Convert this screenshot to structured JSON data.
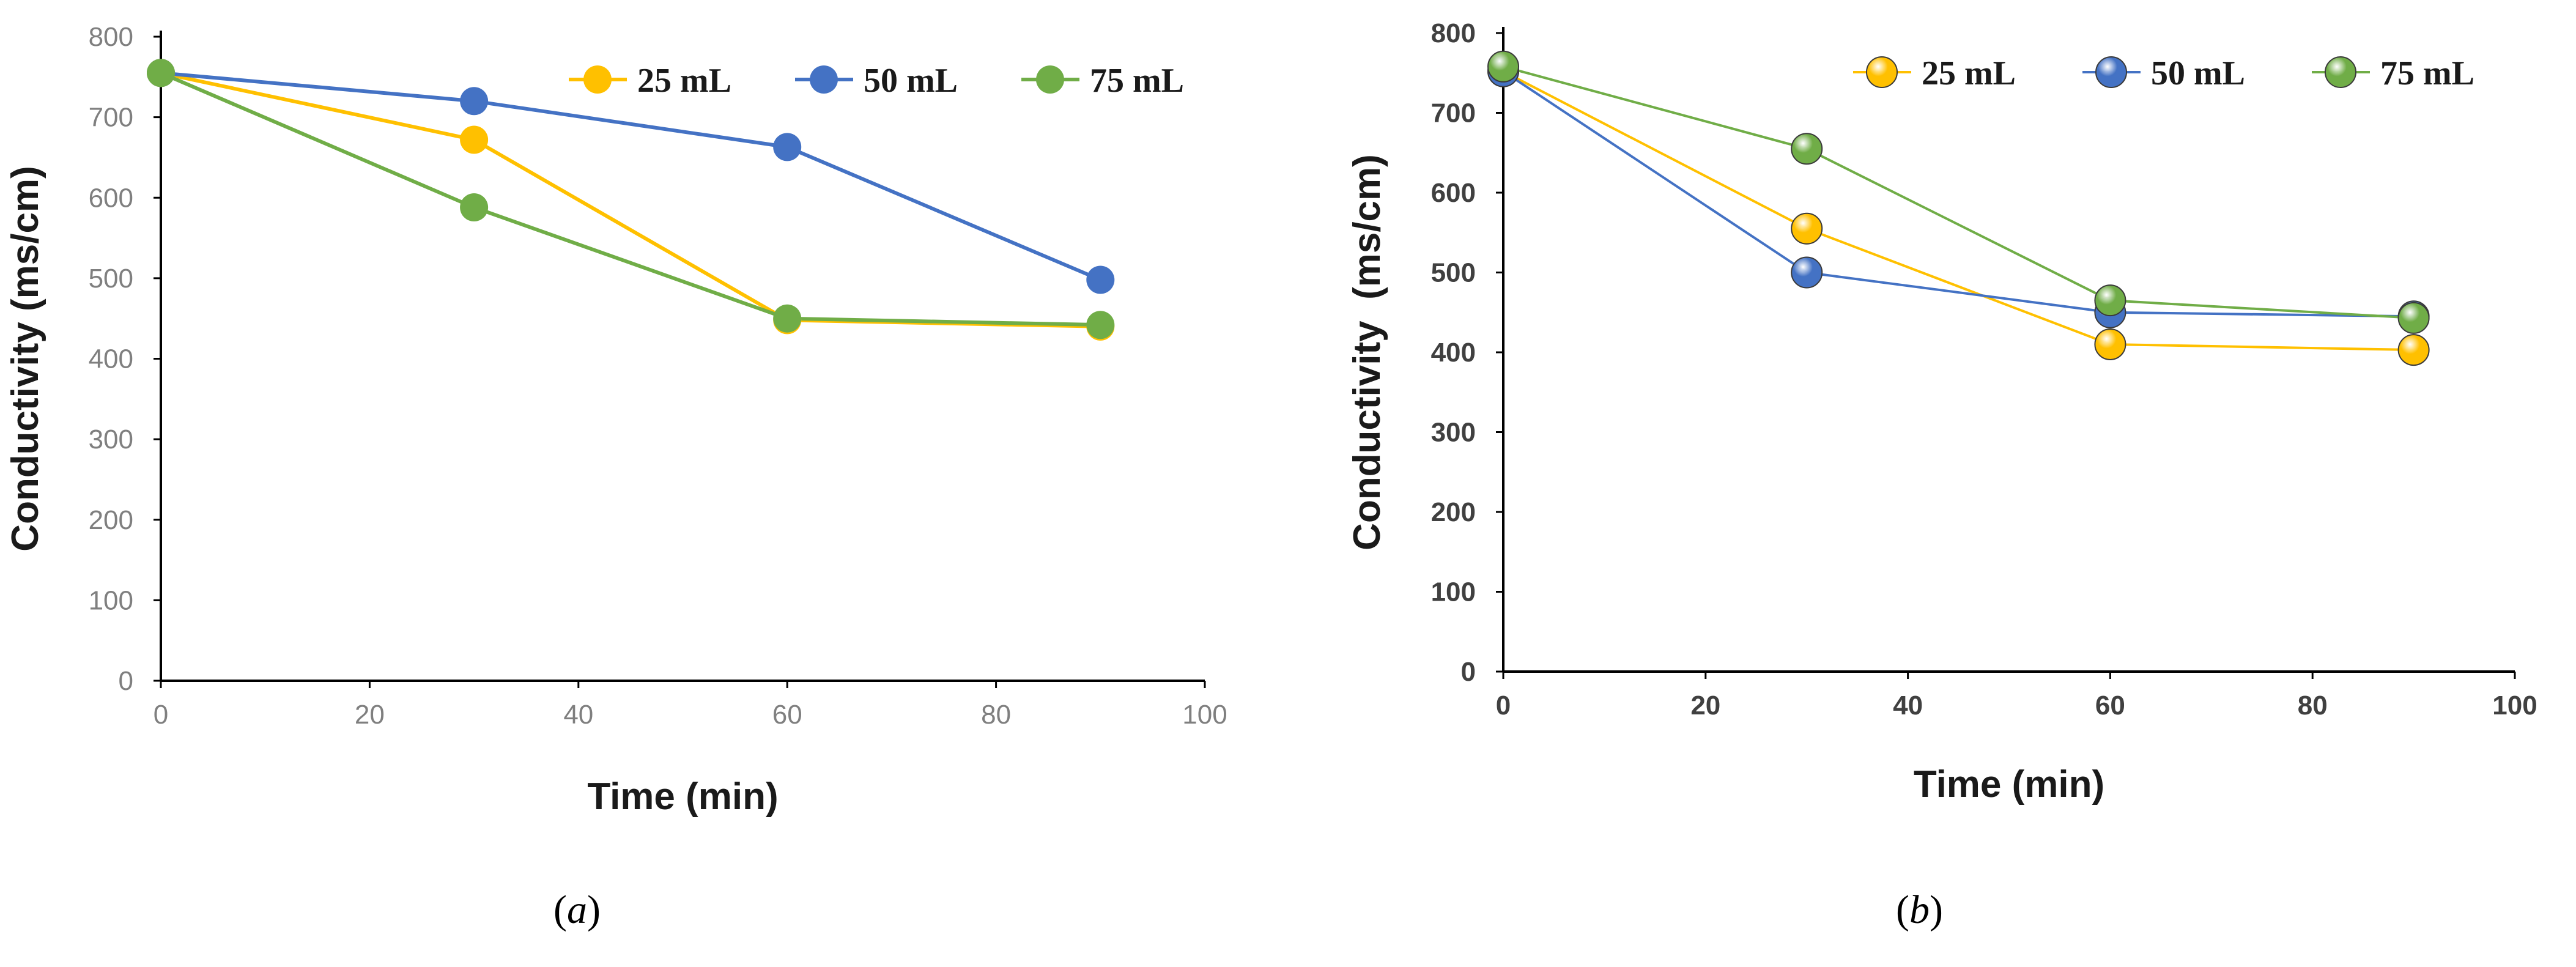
{
  "chart_data": [
    {
      "type": "line",
      "panel": "(a)",
      "panel_letter": "a",
      "x": [
        0,
        30,
        60,
        90
      ],
      "series": [
        {
          "name": "25 mL",
          "color": "#FFC000",
          "values": [
            755,
            672,
            448,
            440
          ]
        },
        {
          "name": "50 mL",
          "color": "#4472C4",
          "values": [
            755,
            720,
            663,
            498
          ]
        },
        {
          "name": "75 mL",
          "color": "#70AD47",
          "values": [
            755,
            588,
            450,
            442
          ]
        }
      ],
      "xlabel": "Time (min)",
      "ylabel": "Conductivity (ms/cm)",
      "xlim": [
        0,
        100
      ],
      "ylim": [
        0,
        800
      ],
      "xticks": [
        0,
        20,
        40,
        60,
        80,
        100
      ],
      "yticks": [
        0,
        100,
        200,
        300,
        400,
        500,
        600,
        700,
        800
      ],
      "grid": false,
      "legend_position": "top-right",
      "marker_style": "flat"
    },
    {
      "type": "line",
      "panel": "(b)",
      "panel_letter": "b",
      "x": [
        0,
        30,
        60,
        90
      ],
      "series": [
        {
          "name": "25 mL",
          "color": "#FFC000",
          "values": [
            752,
            555,
            410,
            403
          ]
        },
        {
          "name": "50 mL",
          "color": "#4472C4",
          "values": [
            752,
            500,
            450,
            445
          ]
        },
        {
          "name": "75 mL",
          "color": "#70AD47",
          "values": [
            758,
            655,
            465,
            443
          ]
        }
      ],
      "xlabel": "Time (min)",
      "ylabel": "Conductivity  (ms/cm)",
      "xlim": [
        0,
        100
      ],
      "ylim": [
        0,
        800
      ],
      "xticks": [
        0,
        20,
        40,
        60,
        80,
        100
      ],
      "yticks": [
        0,
        100,
        200,
        300,
        400,
        500,
        600,
        700,
        800
      ],
      "grid": false,
      "legend_position": "top-right",
      "marker_style": "glossy"
    }
  ]
}
